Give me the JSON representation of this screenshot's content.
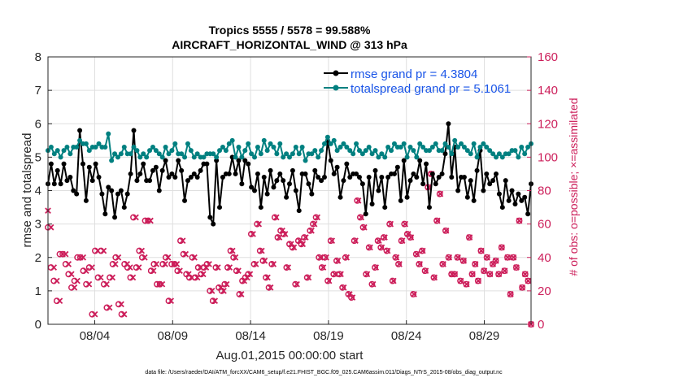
{
  "chart_data": {
    "type": "line",
    "title": "Tropics 5555 / 5578 = 99.588%",
    "subtitle": "AIRCRAFT_HORIZONTAL_WIND @ 313 hPa",
    "xlabel": "Aug.01,2015 00:00:00 start",
    "ylabel": "rmse and totalspread",
    "ylabel_right": "# of obs: o=possible; ×=assimilated",
    "xlim": [
      1,
      32
    ],
    "ylim": [
      0,
      8
    ],
    "ylim_right": [
      0,
      160
    ],
    "x_tick_values": [
      4,
      9,
      14,
      19,
      24,
      29
    ],
    "x_tick_labels": [
      "08/04",
      "08/09",
      "08/14",
      "08/19",
      "08/24",
      "08/29"
    ],
    "y_ticks": [
      "0",
      "1",
      "2",
      "3",
      "4",
      "5",
      "6",
      "7",
      "8"
    ],
    "y_ticks_right": [
      "0",
      "20",
      "40",
      "60",
      "80",
      "100",
      "120",
      "140",
      "160"
    ],
    "legend": [
      {
        "label": "rmse grand pr = 4.3804",
        "color": "#000000"
      },
      {
        "label": "totalspread grand pr = 5.1061",
        "color": "#008080"
      }
    ],
    "series": [
      {
        "name": "rmse grand pr = 4.3804",
        "color": "#000000",
        "axis": "left",
        "values": [
          4.2,
          4.8,
          4.2,
          4.6,
          4.2,
          4.8,
          4.3,
          4.4,
          4.0,
          3.9,
          5.8,
          4.8,
          3.7,
          4.7,
          4.3,
          4.8,
          4.4,
          3.9,
          3.3,
          4.1,
          4.0,
          3.2,
          3.9,
          4.0,
          3.5,
          3.9,
          4.5,
          5.8,
          4.3,
          4.5,
          4.8,
          4.3,
          4.3,
          4.6,
          4.7,
          4.0,
          4.6,
          4.9,
          4.4,
          4.5,
          4.4,
          4.9,
          4.6,
          3.7,
          4.3,
          4.4,
          4.5,
          4.4,
          4.6,
          4.8,
          4.8,
          3.2,
          3.0,
          4.9,
          3.5,
          4.4,
          4.5,
          4.5,
          5.0,
          4.5,
          4.9,
          4.2,
          4.9,
          4.8,
          4.1,
          4.0,
          4.5,
          3.5,
          4.4,
          3.9,
          4.6,
          4.1,
          4.3,
          4.5,
          4.3,
          3.8,
          4.2,
          4.6,
          4.0,
          3.4,
          4.5,
          4.5,
          4.2,
          3.9,
          4.6,
          4.4,
          4.3,
          4.4,
          5.5,
          4.9,
          4.5,
          4.7,
          3.8,
          4.3,
          4.8,
          4.4,
          4.5,
          4.5,
          4.4,
          4.2,
          3.3,
          4.4,
          3.6,
          4.6,
          4.0,
          4.4,
          3.5,
          4.4,
          4.5,
          4.5,
          4.7,
          3.7,
          4.9,
          3.8,
          4.3,
          4.5,
          4.4,
          4.9,
          4.2,
          4.8,
          3.5,
          4.5,
          4.2,
          4.4,
          4.5,
          5.1,
          6.0,
          4.4,
          5.3,
          4.0,
          4.4,
          4.4,
          3.8,
          4.3,
          3.7,
          4.6,
          5.2,
          4.0,
          4.5,
          4.2,
          4.3,
          4.5,
          3.9,
          3.5,
          4.3,
          3.7,
          4.0,
          3.6,
          3.9,
          3.7,
          3.8,
          3.3,
          4.2
        ]
      },
      {
        "name": "totalspread grand pr = 5.1061",
        "color": "#008080",
        "axis": "left",
        "values": [
          5.2,
          5.3,
          5.1,
          5.2,
          5.0,
          5.2,
          5.3,
          5.1,
          5.3,
          5.3,
          5.5,
          5.4,
          5.4,
          5.2,
          5.3,
          5.3,
          5.4,
          5.3,
          5.3,
          5.7,
          4.9,
          5.1,
          5.0,
          5.1,
          5.3,
          5.1,
          5.1,
          5.3,
          5.2,
          5.0,
          5.1,
          5.0,
          5.2,
          5.3,
          5.2,
          5.1,
          5.0,
          5.3,
          5.1,
          5.2,
          5.4,
          5.1,
          5.1,
          5.0,
          5.4,
          5.2,
          5.0,
          5.1,
          5.0,
          5.0,
          5.1,
          5.1,
          5.1,
          5.0,
          5.2,
          5.3,
          5.2,
          5.4,
          5.5,
          5.0,
          5.3,
          5.0,
          5.2,
          5.4,
          5.1,
          5.0,
          5.3,
          5.1,
          5.5,
          5.2,
          5.4,
          5.3,
          5.1,
          5.4,
          5.0,
          5.1,
          5.0,
          5.1,
          5.3,
          5.1,
          5.3,
          4.9,
          5.1,
          5.1,
          5.2,
          5.0,
          5.2,
          5.4,
          5.6,
          5.4,
          5.5,
          5.2,
          5.3,
          5.4,
          5.3,
          5.2,
          5.1,
          5.4,
          5.2,
          5.1,
          5.2,
          5.3,
          5.1,
          5.2,
          5.0,
          5.1,
          5.0,
          5.3,
          5.2,
          5.4,
          5.3,
          5.3,
          5.4,
          5.0,
          5.3,
          5.2,
          5.0,
          5.4,
          5.3,
          5.2,
          5.2,
          5.3,
          5.4,
          5.2,
          5.2,
          5.4,
          5.3,
          5.1,
          5.5,
          5.3,
          5.4,
          5.3,
          5.2,
          5.1,
          5.4,
          5.0,
          5.3,
          5.4,
          5.3,
          5.2,
          5.1,
          5.0,
          5.1,
          5.0,
          5.1,
          5.1,
          5.2,
          5.2,
          5.0,
          5.3,
          5.1,
          5.3,
          5.4
        ]
      }
    ],
    "obs_possible": {
      "name": "possible (o)",
      "color": "#cc1e5a",
      "axis": "right",
      "values": [
        58,
        34,
        26,
        14,
        42,
        42,
        36,
        30,
        22,
        26,
        40,
        40,
        32,
        24,
        34,
        6,
        44,
        28,
        44,
        24,
        10,
        28,
        36,
        40,
        12,
        6,
        36,
        34,
        28,
        64,
        34,
        44,
        40,
        62,
        62,
        32,
        36,
        24,
        24,
        36,
        40,
        14,
        36,
        36,
        32,
        50,
        42,
        30,
        28,
        40,
        28,
        34,
        30,
        34,
        36,
        20,
        14,
        34,
        22,
        20,
        24,
        34,
        44,
        40,
        32,
        18,
        26,
        28,
        30,
        54,
        36,
        60,
        44,
        38,
        28,
        22,
        36,
        64,
        52,
        56,
        54,
        34,
        48,
        46,
        24,
        50,
        48,
        52,
        28,
        56,
        60,
        64,
        40,
        34,
        40,
        26,
        50,
        30,
        38,
        30,
        22,
        40,
        18,
        16,
        50,
        74,
        64,
        58,
        30,
        46,
        24,
        34,
        50,
        46,
        52,
        44,
        60,
        26,
        40,
        36,
        50,
        60,
        54,
        52,
        18,
        42,
        36,
        44,
        32,
        82,
        90,
        28,
        62,
        78,
        36,
        56,
        40,
        30,
        30,
        40,
        26,
        38,
        24,
        52,
        30,
        36,
        26,
        44,
        32,
        40,
        30,
        36,
        38,
        30,
        46,
        32,
        40,
        18,
        40,
        34,
        62,
        22,
        30,
        26,
        0
      ]
    },
    "obs_assimilated": {
      "name": "assimilated (×)",
      "color": "#cc1e5a",
      "axis": "right",
      "values": [
        68,
        58,
        34,
        26,
        14,
        42,
        42,
        36,
        30,
        22,
        26,
        40,
        40,
        32,
        24,
        34,
        6,
        44,
        28,
        44,
        24,
        10,
        28,
        36,
        40,
        12,
        6,
        36,
        34,
        28,
        64,
        34,
        44,
        40,
        62,
        62,
        32,
        36,
        24,
        24,
        36,
        40,
        14,
        36,
        36,
        32,
        50,
        42,
        30,
        28,
        40,
        28,
        34,
        30,
        34,
        36,
        20,
        14,
        34,
        22,
        20,
        24,
        34,
        44,
        40,
        32,
        18,
        26,
        28,
        30,
        54,
        36,
        60,
        44,
        38,
        28,
        22,
        36,
        64,
        52,
        56,
        54,
        34,
        48,
        46,
        24,
        50,
        48,
        52,
        28,
        56,
        60,
        64,
        40,
        34,
        40,
        26,
        50,
        30,
        38,
        30,
        22,
        40,
        18,
        16,
        50,
        74,
        64,
        58,
        30,
        46,
        24,
        34,
        50,
        46,
        52,
        44,
        60,
        26,
        40,
        36,
        50,
        60,
        54,
        52,
        18,
        42,
        36,
        44,
        32,
        82,
        90,
        28,
        62,
        78,
        36,
        56,
        40,
        30,
        30,
        40,
        26,
        38,
        24,
        52,
        30,
        36,
        26,
        44,
        32,
        40,
        30,
        36,
        38,
        30,
        46,
        32,
        40,
        18,
        40,
        34,
        62,
        22,
        30,
        26,
        0
      ]
    },
    "footnote": "data file: /Users/raeder/DAI/ATM_forcXX/CAM6_setup/f.e21.FHIST_BGC.f09_025.CAM6assim.011/Diags_NTrS_2015-08/obs_diag_output.nc"
  }
}
